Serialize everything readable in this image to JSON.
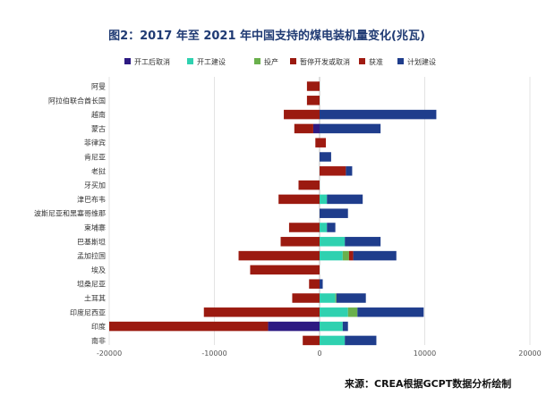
{
  "chart_data": {
    "type": "bar",
    "orientation": "horizontal",
    "stacked": true,
    "title": "图2：2017 年至 2021 年中国支持的煤电装机量变化(兆瓦)",
    "xlabel": "",
    "ylabel": "",
    "xlim": [
      -20000,
      20000
    ],
    "x_ticks": [
      -20000,
      -10000,
      0,
      10000,
      20000
    ],
    "grid": "vertical",
    "legend_position": "top",
    "categories": [
      "阿曼",
      "阿拉伯联合酋长国",
      "越南",
      "蒙古",
      "菲律宾",
      "肯尼亚",
      "老挝",
      "牙买加",
      "津巴布韦",
      "波斯尼亚和黑塞哥维那",
      "柬埔寨",
      "巴基斯坦",
      "孟加拉国",
      "埃及",
      "坦桑尼亚",
      "土耳其",
      "印度尼西亚",
      "印度",
      "南非"
    ],
    "series": [
      {
        "name": "开工后取消",
        "color": "#2d1a82",
        "values": [
          0,
          0,
          0,
          -600,
          0,
          0,
          0,
          0,
          0,
          0,
          0,
          0,
          0,
          0,
          0,
          0,
          0,
          -4900,
          0
        ]
      },
      {
        "name": "开工建设",
        "color": "#2fd1b0",
        "values": [
          0,
          0,
          0,
          0,
          0,
          0,
          0,
          0,
          700,
          0,
          700,
          2400,
          2200,
          0,
          0,
          1500,
          2700,
          2200,
          2400
        ]
      },
      {
        "name": "投产",
        "color": "#6ab04c",
        "values": [
          0,
          0,
          0,
          0,
          0,
          0,
          0,
          0,
          0,
          0,
          0,
          0,
          600,
          0,
          0,
          100,
          900,
          0,
          0
        ]
      },
      {
        "name": "暂停开发或取消",
        "color": "#9b1a10",
        "values": [
          -1200,
          -1200,
          -3400,
          -1800,
          -400,
          0,
          0,
          -2000,
          -3900,
          0,
          -2900,
          -3700,
          -7700,
          -6600,
          -1000,
          -2600,
          -11000,
          -15100,
          -1600
        ]
      },
      {
        "name": "获准",
        "color": "#a01b12",
        "values": [
          0,
          0,
          0,
          0,
          600,
          0,
          2500,
          0,
          0,
          0,
          0,
          0,
          400,
          0,
          0,
          0,
          0,
          0,
          0
        ]
      },
      {
        "name": "计划建设",
        "color": "#1f3d8c",
        "values": [
          0,
          0,
          11100,
          5800,
          0,
          1100,
          600,
          0,
          3400,
          2700,
          800,
          3400,
          4100,
          0,
          300,
          2800,
          6300,
          500,
          3000
        ]
      }
    ],
    "source": "来源：CREA根据GCPT数据分析绘制"
  }
}
